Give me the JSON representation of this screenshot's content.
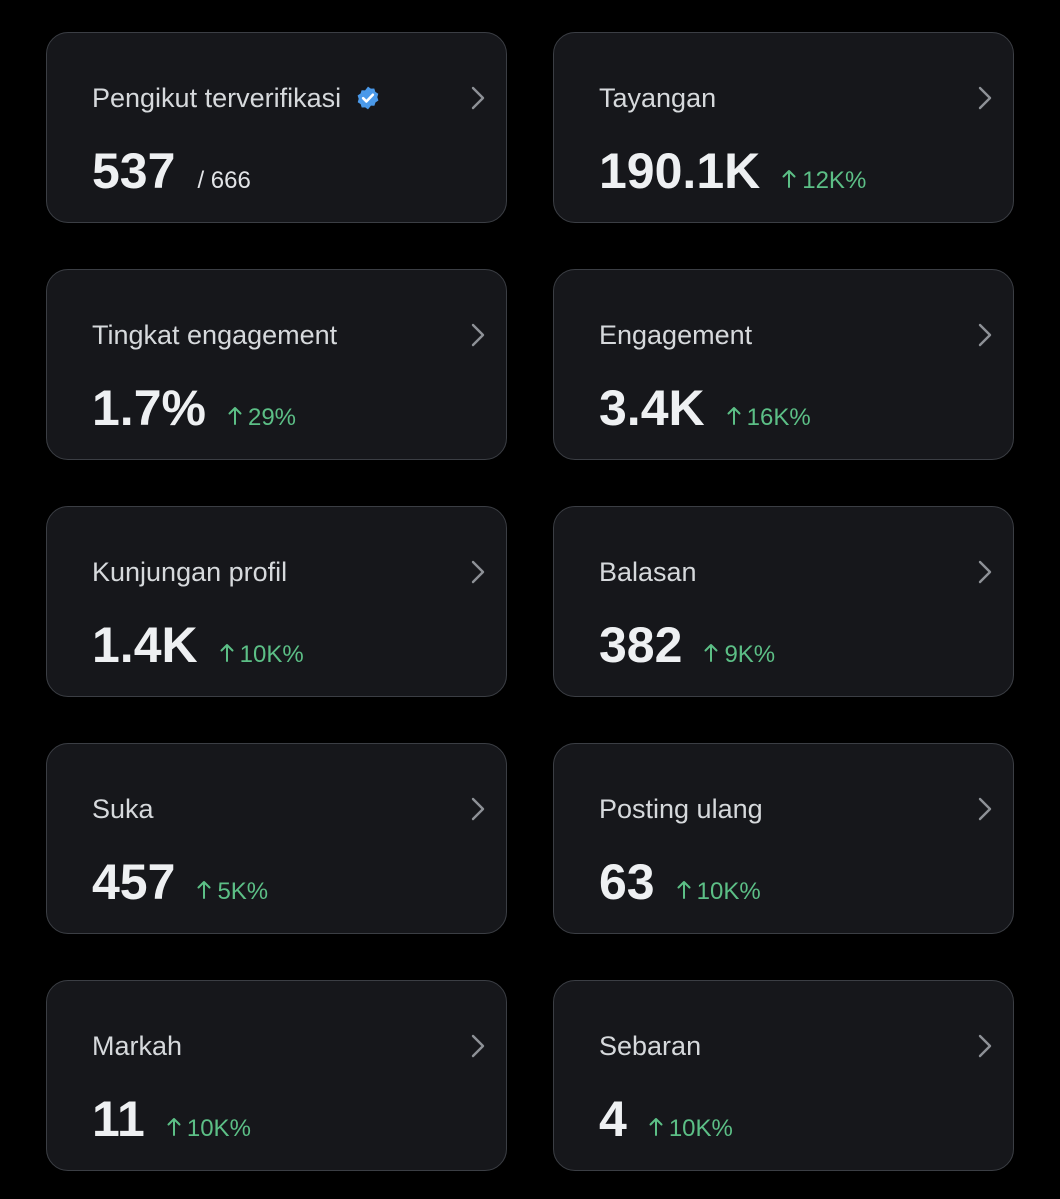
{
  "cards": [
    {
      "label": "Pengikut terverifikasi",
      "value": "537",
      "total": "/ 666"
    },
    {
      "label": "Tayangan",
      "value": "190.1K",
      "change": "12K%"
    },
    {
      "label": "Tingkat engagement",
      "value": "1.7%",
      "change": "29%"
    },
    {
      "label": "Engagement",
      "value": "3.4K",
      "change": "16K%"
    },
    {
      "label": "Kunjungan profil",
      "value": "1.4K",
      "change": "10K%"
    },
    {
      "label": "Balasan",
      "value": "382",
      "change": "9K%"
    },
    {
      "label": "Suka",
      "value": "457",
      "change": "5K%"
    },
    {
      "label": "Posting ulang",
      "value": "63",
      "change": "10K%"
    },
    {
      "label": "Markah",
      "value": "11",
      "change": "10K%"
    },
    {
      "label": "Sebaran",
      "value": "4",
      "change": "10K%"
    }
  ]
}
